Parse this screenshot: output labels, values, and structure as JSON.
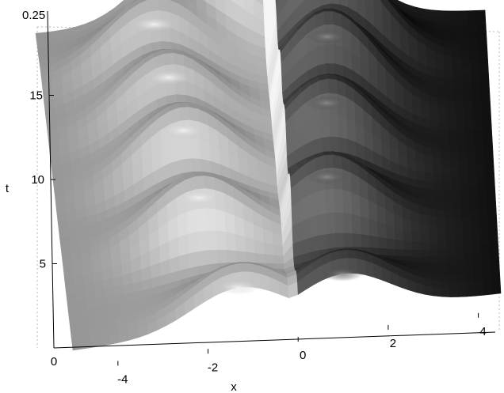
{
  "chart_data": {
    "type": "surface",
    "title": "",
    "xlabel": "x",
    "ylabel": "t",
    "zlabel": "",
    "x_ticks": [
      "-4",
      "-2",
      "0",
      "2",
      "4"
    ],
    "t_ticks": [
      "5",
      "10",
      "15"
    ],
    "z_ticks": [
      "0",
      "0.25"
    ],
    "xlim": [
      -5,
      4.5
    ],
    "tlim": [
      0,
      20
    ],
    "zlim": [
      0,
      0.25
    ],
    "grid": true,
    "shading": "interpolated gray colormap with lighting",
    "series": [
      {
        "region": "x < 0",
        "gray_level": "light",
        "ridges": [
          {
            "t": 0.8,
            "x_peak": -1.3,
            "z": 0.07
          },
          {
            "t": 6.0,
            "x_peak": -2.0,
            "z": 0.09
          },
          {
            "t": 10.0,
            "x_peak": -2.2,
            "z": 0.1
          },
          {
            "t": 13.5,
            "x_peak": -2.4,
            "z": 0.1
          },
          {
            "t": 17.0,
            "x_peak": -2.6,
            "z": 0.1
          },
          {
            "t": 20.0,
            "x_peak": -1.5,
            "z": 0.12
          }
        ]
      },
      {
        "region": "x > 0",
        "gray_level": "dark",
        "ridges": [
          {
            "t": 0.8,
            "x_peak": 1.0,
            "z": 0.07
          },
          {
            "t": 6.0,
            "x_peak": 0.8,
            "z": 0.1
          },
          {
            "t": 10.0,
            "x_peak": 0.9,
            "z": 0.12
          },
          {
            "t": 13.5,
            "x_peak": 1.0,
            "z": 0.14
          },
          {
            "t": 17.0,
            "x_peak": 1.2,
            "z": 0.15
          },
          {
            "t": 20.0,
            "x_peak": 0.5,
            "z": 0.14
          }
        ]
      }
    ]
  }
}
